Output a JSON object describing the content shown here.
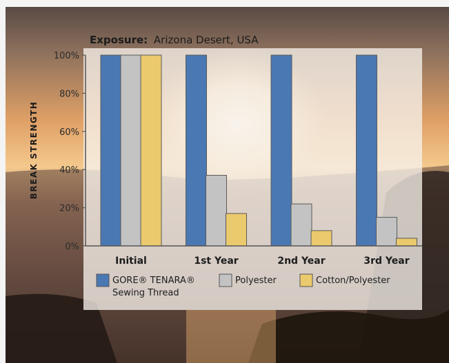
{
  "colors": {
    "gore": "#4a78b3",
    "polyester": "#c3c3c3",
    "cotton": "#ebc96d",
    "panel": "#f6f1ea",
    "text": "#1c1c1c"
  },
  "chart_data": {
    "type": "bar",
    "title_label": "Exposure:",
    "title_value": "Arizona Desert, USA",
    "ylabel": "BREAK STRENGTH",
    "xlabel": "",
    "ylim": [
      0,
      100
    ],
    "yticks": [
      "0%",
      "20%",
      "40%",
      "60%",
      "80%",
      "100%"
    ],
    "categories": [
      "Initial",
      "1st Year",
      "2nd Year",
      "3rd Year"
    ],
    "series": [
      {
        "name": "GORE® TENARA® Sewing Thread",
        "name_line1": "GORE® TENARA®",
        "name_line2": "Sewing Thread",
        "values": [
          100,
          100,
          100,
          100
        ]
      },
      {
        "name": "Polyester",
        "values": [
          100,
          37,
          22,
          15
        ]
      },
      {
        "name": "Cotton/Polyester",
        "values": [
          100,
          17,
          8,
          4
        ]
      }
    ],
    "grid": false,
    "legend": "bottom"
  }
}
